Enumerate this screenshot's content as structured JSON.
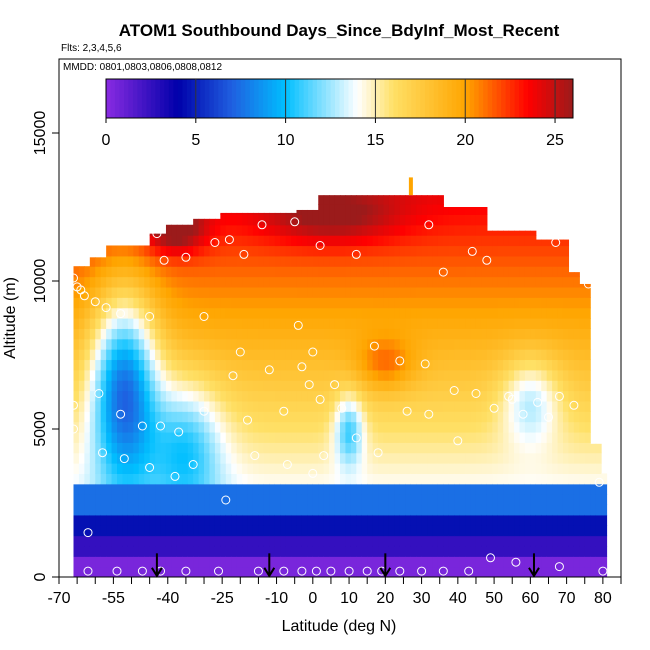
{
  "chart_data": {
    "type": "heatmap",
    "title": "ATOM1 Southbound Days_Since_BdyInf_Most_Recent",
    "subtitle_flights": "Flts: 2,3,4,5,6",
    "subtitle_dates": "MMDD: 0801,0803,0806,0808,0812",
    "xlabel": "Latitude (deg N)",
    "ylabel": "Altitude (m)",
    "xlim": [
      -70,
      85
    ],
    "ylim": [
      0,
      17500
    ],
    "x_ticks": [
      -70,
      -55,
      -40,
      -25,
      -10,
      0,
      10,
      20,
      30,
      40,
      50,
      60,
      70,
      80
    ],
    "x_tick_labels": [
      "-70",
      "-55",
      "-40",
      "-25",
      "-10",
      "0",
      "10",
      "20",
      "30",
      "40",
      "50",
      "60",
      "70",
      "80"
    ],
    "x_minor_ticks": [
      -65,
      -60,
      -50,
      -45,
      -35,
      -30,
      -20,
      -15,
      -5,
      5,
      15,
      25,
      35,
      45,
      55,
      65,
      75,
      85
    ],
    "y_ticks": [
      0,
      5000,
      10000,
      15000
    ],
    "y_tick_labels": [
      "0",
      "5000",
      "10000",
      "15000"
    ],
    "colorbar": {
      "min": 0,
      "max": 26,
      "ticks": [
        0,
        5,
        10,
        15,
        20,
        25
      ],
      "tick_labels": [
        "0",
        "5",
        "10",
        "15",
        "20",
        "25"
      ],
      "colors": [
        "#8a2be2",
        "#0000aa",
        "#1f5fe0",
        "#00bfff",
        "#ffffff",
        "#ffe066",
        "#ffa500",
        "#ff0000",
        "#9b1b1b"
      ]
    },
    "flight_tracks_lat": [
      -43,
      -12,
      20,
      61
    ],
    "sample_points": [
      [
        -66,
        10100
      ],
      [
        -65,
        9800
      ],
      [
        -64,
        9700
      ],
      [
        -63,
        9500
      ],
      [
        -60,
        9300
      ],
      [
        -57,
        9100
      ],
      [
        -53,
        8900
      ],
      [
        -45,
        8800
      ],
      [
        -59,
        6200
      ],
      [
        -53,
        5500
      ],
      [
        -47,
        5100
      ],
      [
        -42,
        5100
      ],
      [
        -37,
        4900
      ],
      [
        -66,
        5800
      ],
      [
        -66,
        5000
      ],
      [
        -58,
        4200
      ],
      [
        -52,
        4000
      ],
      [
        -45,
        3700
      ],
      [
        -62,
        1500
      ],
      [
        -43,
        11600
      ],
      [
        -41,
        10700
      ],
      [
        -35,
        10800
      ],
      [
        -27,
        11300
      ],
      [
        -23,
        11400
      ],
      [
        -19,
        10900
      ],
      [
        -5,
        12000
      ],
      [
        -14,
        11900
      ],
      [
        2,
        11200
      ],
      [
        12,
        10900
      ],
      [
        32,
        11900
      ],
      [
        36,
        10300
      ],
      [
        44,
        11000
      ],
      [
        48,
        10700
      ],
      [
        67,
        11300
      ],
      [
        -4,
        8500
      ],
      [
        0,
        7600
      ],
      [
        -30,
        8800
      ],
      [
        -20,
        7600
      ],
      [
        -12,
        7000
      ],
      [
        -3,
        7100
      ],
      [
        6,
        6500
      ],
      [
        17,
        7800
      ],
      [
        24,
        7300
      ],
      [
        31,
        7200
      ],
      [
        39,
        6300
      ],
      [
        45,
        6200
      ],
      [
        55,
        6000
      ],
      [
        62,
        5900
      ],
      [
        68,
        6100
      ],
      [
        72,
        5800
      ],
      [
        -30,
        5600
      ],
      [
        -22,
        6800
      ],
      [
        -18,
        5300
      ],
      [
        -8,
        5600
      ],
      [
        -1,
        6500
      ],
      [
        2,
        6000
      ],
      [
        8,
        5700
      ],
      [
        12,
        4700
      ],
      [
        18,
        4200
      ],
      [
        26,
        5600
      ],
      [
        32,
        5500
      ],
      [
        40,
        4600
      ],
      [
        50,
        5700
      ],
      [
        54,
        6100
      ],
      [
        58,
        5500
      ],
      [
        65,
        5400
      ],
      [
        -38,
        3400
      ],
      [
        -33,
        3800
      ],
      [
        -24,
        2600
      ],
      [
        -16,
        4100
      ],
      [
        -7,
        3800
      ],
      [
        0,
        3500
      ],
      [
        3,
        4100
      ],
      [
        -62,
        200
      ],
      [
        -54,
        200
      ],
      [
        -47,
        200
      ],
      [
        -42,
        200
      ],
      [
        -35,
        200
      ],
      [
        -26,
        200
      ],
      [
        -15,
        200
      ],
      [
        -8,
        200
      ],
      [
        -3,
        200
      ],
      [
        1,
        200
      ],
      [
        5,
        200
      ],
      [
        10,
        200
      ],
      [
        15,
        200
      ],
      [
        19,
        200
      ],
      [
        24,
        200
      ],
      [
        30,
        200
      ],
      [
        36,
        200
      ],
      [
        43,
        200
      ],
      [
        49,
        650
      ],
      [
        56,
        500
      ],
      [
        68,
        350
      ],
      [
        80,
        200
      ],
      [
        79,
        3200
      ],
      [
        76,
        9900
      ]
    ]
  }
}
